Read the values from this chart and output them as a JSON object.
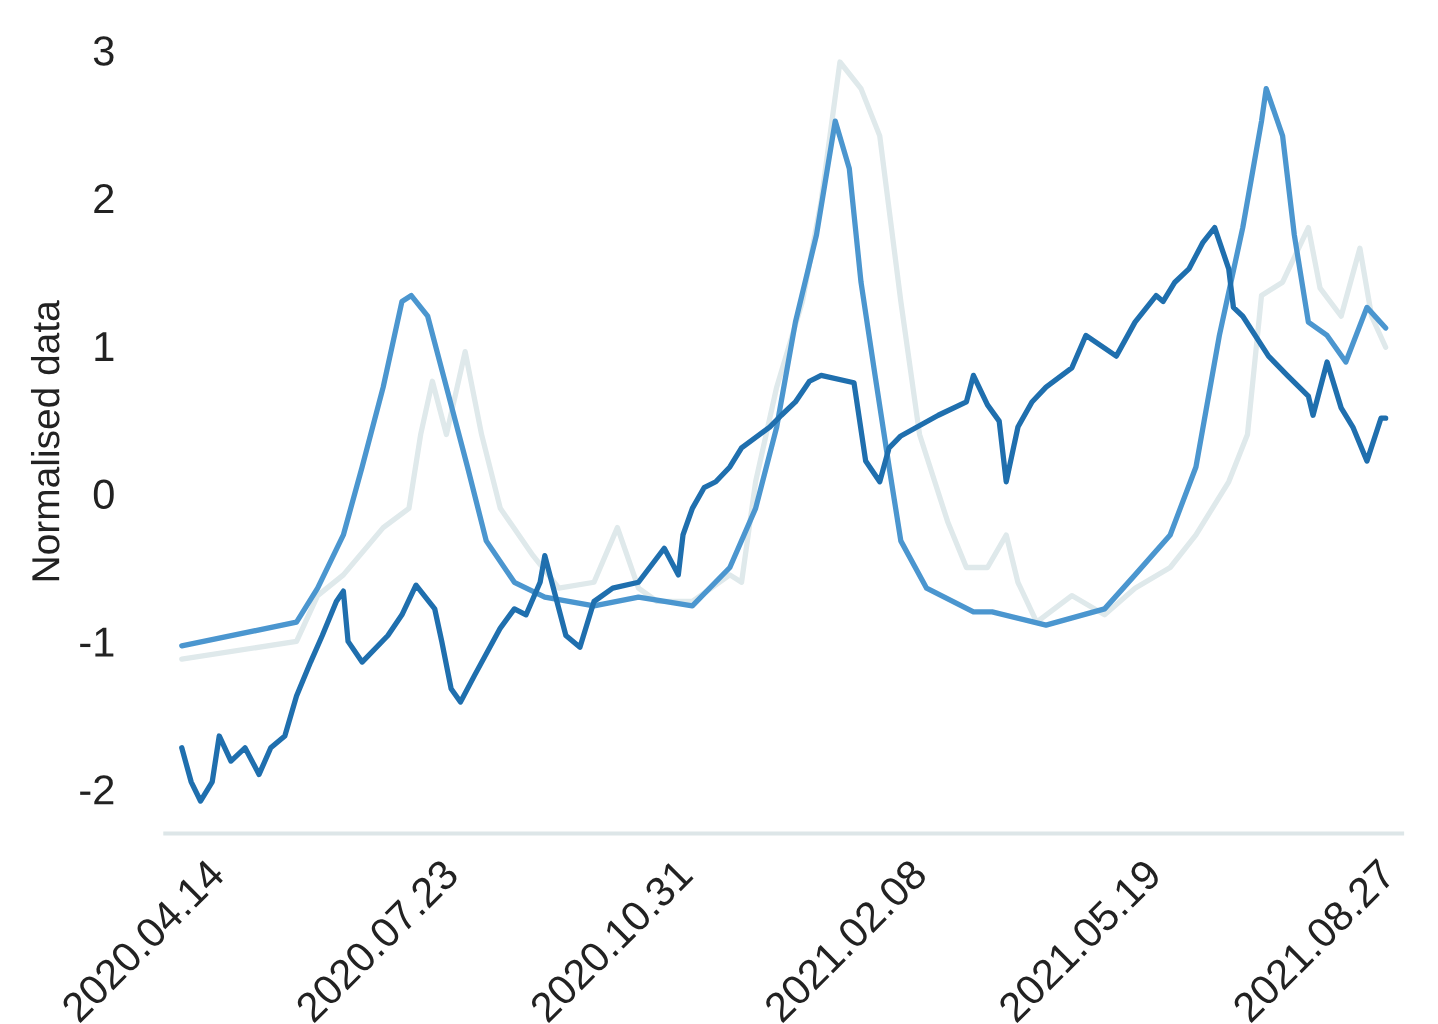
{
  "chart_data": {
    "type": "line",
    "ylabel": "Normalised data",
    "xlim": [
      "2020-03-28",
      "2021-09-07"
    ],
    "xticks": [
      {
        "value": "2020-04-14",
        "label": "2020.04.14"
      },
      {
        "value": "2020-07-23",
        "label": "2020.07.23"
      },
      {
        "value": "2020-10-31",
        "label": "2020.10.31"
      },
      {
        "value": "2021-02-08",
        "label": "2021.02.08"
      },
      {
        "value": "2021-05-19",
        "label": "2021.05.19"
      },
      {
        "value": "2021-08-27",
        "label": "2021.08.27"
      }
    ],
    "ylim": [
      -2.3,
      3
    ],
    "yticks": [
      -2,
      -1,
      0,
      1,
      2,
      3
    ],
    "grid": false,
    "legend": false,
    "marker": "none",
    "line_style": "solid",
    "series": [
      {
        "color": "#dfe9eb",
        "x": [
          "2020-04-04",
          "2020-05-23",
          "2020-06-01",
          "2020-06-12",
          "2020-06-29",
          "2020-07-10",
          "2020-07-15",
          "2020-07-20",
          "2020-07-26",
          "2020-08-03",
          "2020-08-10",
          "2020-08-18",
          "2020-09-01",
          "2020-09-12",
          "2020-09-27",
          "2020-10-07",
          "2020-10-16",
          "2020-10-24",
          "2020-11-08",
          "2020-11-24",
          "2020-11-29",
          "2020-12-05",
          "2020-12-14",
          "2020-12-25",
          "2021-01-02",
          "2021-01-10",
          "2021-01-19",
          "2021-01-27",
          "2021-02-05",
          "2021-02-13",
          "2021-02-25",
          "2021-03-05",
          "2021-03-14",
          "2021-03-22",
          "2021-03-27",
          "2021-04-04",
          "2021-04-19",
          "2021-05-03",
          "2021-05-16",
          "2021-05-31",
          "2021-06-11",
          "2021-06-25",
          "2021-07-03",
          "2021-07-09",
          "2021-07-18",
          "2021-07-29",
          "2021-08-03",
          "2021-08-12",
          "2021-08-20",
          "2021-08-25",
          "2021-08-31"
        ],
        "values": [
          -1.12,
          -1.0,
          -0.69,
          -0.55,
          -0.23,
          -0.1,
          0.4,
          0.76,
          0.4,
          0.96,
          0.4,
          -0.1,
          -0.42,
          -0.64,
          -0.6,
          -0.23,
          -0.64,
          -0.73,
          -0.73,
          -0.55,
          -0.6,
          0.08,
          0.72,
          1.3,
          1.98,
          2.92,
          2.74,
          2.42,
          1.3,
          0.4,
          -0.19,
          -0.5,
          -0.5,
          -0.28,
          -0.6,
          -0.87,
          -0.69,
          -0.82,
          -0.64,
          -0.5,
          -0.28,
          0.08,
          0.4,
          1.34,
          1.43,
          1.8,
          1.39,
          1.2,
          1.66,
          1.2,
          0.99
        ]
      },
      {
        "color": "#4b96cf",
        "x": [
          "2020-04-04",
          "2020-05-23",
          "2020-06-01",
          "2020-06-12",
          "2020-06-20",
          "2020-06-29",
          "2020-07-07",
          "2020-07-11",
          "2020-07-18",
          "2020-07-26",
          "2020-08-04",
          "2020-08-12",
          "2020-08-24",
          "2020-09-06",
          "2020-09-27",
          "2020-10-16",
          "2020-11-08",
          "2020-11-24",
          "2020-12-05",
          "2020-12-14",
          "2020-12-22",
          "2020-12-31",
          "2021-01-08",
          "2021-01-14",
          "2021-01-19",
          "2021-01-25",
          "2021-01-31",
          "2021-02-05",
          "2021-02-16",
          "2021-03-08",
          "2021-03-16",
          "2021-04-08",
          "2021-05-03",
          "2021-05-16",
          "2021-05-31",
          "2021-06-11",
          "2021-06-21",
          "2021-07-01",
          "2021-07-09",
          "2021-07-11",
          "2021-07-18",
          "2021-07-23",
          "2021-07-29",
          "2021-08-06",
          "2021-08-14",
          "2021-08-23",
          "2021-08-31"
        ],
        "values": [
          -1.03,
          -0.87,
          -0.64,
          -0.28,
          0.18,
          0.72,
          1.3,
          1.34,
          1.2,
          0.72,
          0.18,
          -0.32,
          -0.6,
          -0.7,
          -0.76,
          -0.7,
          -0.76,
          -0.5,
          -0.1,
          0.45,
          1.16,
          1.75,
          2.52,
          2.2,
          1.43,
          0.8,
          0.18,
          -0.32,
          -0.64,
          -0.8,
          -0.8,
          -0.89,
          -0.78,
          -0.55,
          -0.28,
          0.18,
          1.07,
          1.8,
          2.52,
          2.74,
          2.42,
          1.75,
          1.16,
          1.07,
          0.89,
          1.26,
          1.12
        ]
      },
      {
        "color": "#1f6fae",
        "x": [
          "2020-04-04",
          "2020-04-08",
          "2020-04-12",
          "2020-04-17",
          "2020-04-20",
          "2020-04-25",
          "2020-05-01",
          "2020-05-07",
          "2020-05-12",
          "2020-05-18",
          "2020-05-23",
          "2020-05-29",
          "2020-06-03",
          "2020-06-09",
          "2020-06-12",
          "2020-06-14",
          "2020-06-20",
          "2020-07-01",
          "2020-07-07",
          "2020-07-13",
          "2020-07-21",
          "2020-07-24",
          "2020-07-28",
          "2020-08-01",
          "2020-08-07",
          "2020-08-18",
          "2020-08-24",
          "2020-08-29",
          "2020-09-04",
          "2020-09-06",
          "2020-09-15",
          "2020-09-21",
          "2020-09-27",
          "2020-10-05",
          "2020-10-16",
          "2020-10-27",
          "2020-11-02",
          "2020-11-04",
          "2020-11-08",
          "2020-11-13",
          "2020-11-18",
          "2020-11-24",
          "2020-11-29",
          "2020-12-11",
          "2020-12-16",
          "2020-12-22",
          "2020-12-28",
          "2021-01-02",
          "2021-01-16",
          "2021-01-21",
          "2021-01-27",
          "2021-01-31",
          "2021-02-05",
          "2021-02-21",
          "2021-03-05",
          "2021-03-08",
          "2021-03-14",
          "2021-03-19",
          "2021-03-22",
          "2021-03-27",
          "2021-04-02",
          "2021-04-08",
          "2021-04-19",
          "2021-04-25",
          "2021-05-08",
          "2021-05-16",
          "2021-05-25",
          "2021-05-28",
          "2021-06-02",
          "2021-06-08",
          "2021-06-11",
          "2021-06-14",
          "2021-06-19",
          "2021-06-25",
          "2021-06-27",
          "2021-07-01",
          "2021-07-12",
          "2021-07-20",
          "2021-07-29",
          "2021-07-31",
          "2021-08-06",
          "2021-08-12",
          "2021-08-17",
          "2021-08-23",
          "2021-08-29",
          "2021-08-31"
        ],
        "values": [
          -1.72,
          -1.95,
          -2.08,
          -1.95,
          -1.64,
          -1.81,
          -1.72,
          -1.9,
          -1.72,
          -1.64,
          -1.37,
          -1.14,
          -0.96,
          -0.73,
          -0.66,
          -1.0,
          -1.14,
          -0.96,
          -0.82,
          -0.62,
          -0.78,
          -1.0,
          -1.32,
          -1.41,
          -1.23,
          -0.91,
          -0.78,
          -0.82,
          -0.6,
          -0.42,
          -0.96,
          -1.04,
          -0.73,
          -0.64,
          -0.6,
          -0.37,
          -0.55,
          -0.28,
          -0.1,
          0.04,
          0.08,
          0.18,
          0.31,
          0.45,
          0.53,
          0.62,
          0.76,
          0.8,
          0.75,
          0.22,
          0.08,
          0.31,
          0.39,
          0.53,
          0.62,
          0.8,
          0.6,
          0.49,
          0.08,
          0.45,
          0.62,
          0.72,
          0.85,
          1.07,
          0.93,
          1.16,
          1.34,
          1.3,
          1.43,
          1.52,
          1.61,
          1.7,
          1.8,
          1.52,
          1.26,
          1.2,
          0.93,
          0.8,
          0.66,
          0.53,
          0.89,
          0.58,
          0.45,
          0.22,
          0.51,
          0.51
        ]
      }
    ]
  }
}
